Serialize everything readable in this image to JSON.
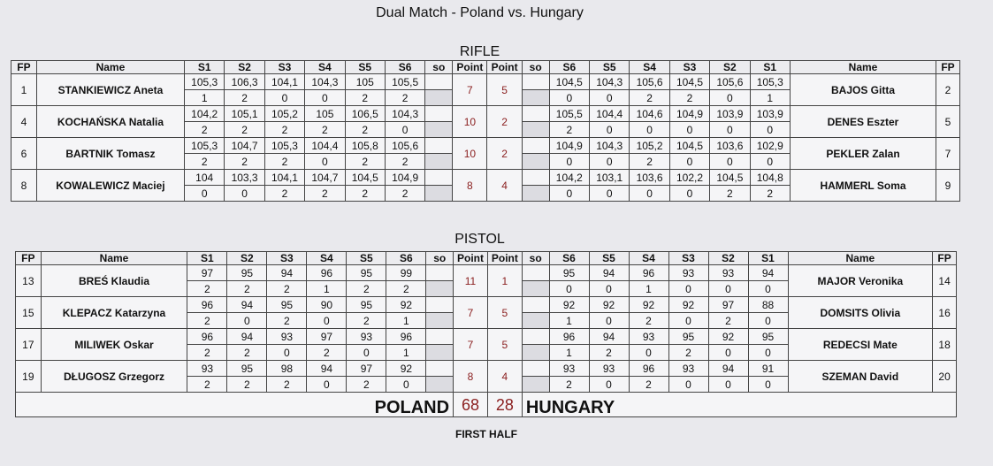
{
  "title": "Dual Match - Poland vs. Hungary",
  "headers": {
    "fp": "FP",
    "name": "Name",
    "s1": "S1",
    "s2": "S2",
    "s3": "S3",
    "s4": "S4",
    "s5": "S5",
    "s6": "S6",
    "so": "so",
    "point": "Point"
  },
  "rifle": {
    "title": "RIFLE",
    "rows": [
      {
        "left_fp": "1",
        "left_name": "STANKIEWICZ Aneta",
        "left_scores": [
          "105,3",
          "106,3",
          "104,1",
          "104,3",
          "105",
          "105,5"
        ],
        "left_pts": [
          "1",
          "2",
          "0",
          "0",
          "2",
          "2"
        ],
        "left_point": "7",
        "right_point": "5",
        "right_scores": [
          "104,5",
          "104,3",
          "105,6",
          "104,5",
          "105,6",
          "105,3"
        ],
        "right_pts": [
          "0",
          "0",
          "2",
          "2",
          "0",
          "1"
        ],
        "right_name": "BAJOS Gitta",
        "right_fp": "2"
      },
      {
        "left_fp": "4",
        "left_name": "KOCHAŃSKA Natalia",
        "left_scores": [
          "104,2",
          "105,1",
          "105,2",
          "105",
          "106,5",
          "104,3"
        ],
        "left_pts": [
          "2",
          "2",
          "2",
          "2",
          "2",
          "0"
        ],
        "left_point": "10",
        "right_point": "2",
        "right_scores": [
          "105,5",
          "104,4",
          "104,6",
          "104,9",
          "103,9",
          "103,9"
        ],
        "right_pts": [
          "2",
          "0",
          "0",
          "0",
          "0",
          "0"
        ],
        "right_name": "DENES Eszter",
        "right_fp": "5"
      },
      {
        "left_fp": "6",
        "left_name": "BARTNIK Tomasz",
        "left_scores": [
          "105,3",
          "104,7",
          "105,3",
          "104,4",
          "105,8",
          "105,6"
        ],
        "left_pts": [
          "2",
          "2",
          "2",
          "0",
          "2",
          "2"
        ],
        "left_point": "10",
        "right_point": "2",
        "right_scores": [
          "104,9",
          "104,3",
          "105,2",
          "104,5",
          "103,6",
          "102,9"
        ],
        "right_pts": [
          "0",
          "0",
          "2",
          "0",
          "0",
          "0"
        ],
        "right_name": "PEKLER Zalan",
        "right_fp": "7"
      },
      {
        "left_fp": "8",
        "left_name": "KOWALEWICZ Maciej",
        "left_scores": [
          "104",
          "103,3",
          "104,1",
          "104,7",
          "104,5",
          "104,9"
        ],
        "left_pts": [
          "0",
          "0",
          "2",
          "2",
          "2",
          "2"
        ],
        "left_point": "8",
        "right_point": "4",
        "right_scores": [
          "104,2",
          "103,1",
          "103,6",
          "102,2",
          "104,5",
          "104,8"
        ],
        "right_pts": [
          "0",
          "0",
          "0",
          "0",
          "2",
          "2"
        ],
        "right_name": "HAMMERL Soma",
        "right_fp": "9"
      }
    ]
  },
  "pistol": {
    "title": "PISTOL",
    "rows": [
      {
        "left_fp": "13",
        "left_name": "BREŚ Klaudia",
        "left_scores": [
          "97",
          "95",
          "94",
          "96",
          "95",
          "99"
        ],
        "left_pts": [
          "2",
          "2",
          "2",
          "1",
          "2",
          "2"
        ],
        "left_point": "11",
        "right_point": "1",
        "right_scores": [
          "95",
          "94",
          "96",
          "93",
          "93",
          "94"
        ],
        "right_pts": [
          "0",
          "0",
          "1",
          "0",
          "0",
          "0"
        ],
        "right_name": "MAJOR Veronika",
        "right_fp": "14"
      },
      {
        "left_fp": "15",
        "left_name": "KLEPACZ Katarzyna",
        "left_scores": [
          "96",
          "94",
          "95",
          "90",
          "95",
          "92"
        ],
        "left_pts": [
          "2",
          "0",
          "2",
          "0",
          "2",
          "1"
        ],
        "left_point": "7",
        "right_point": "5",
        "right_scores": [
          "92",
          "92",
          "92",
          "92",
          "97",
          "88"
        ],
        "right_pts": [
          "1",
          "0",
          "2",
          "0",
          "2",
          "0"
        ],
        "right_name": "DOMSITS Olivia",
        "right_fp": "16"
      },
      {
        "left_fp": "17",
        "left_name": "MILIWEK Oskar",
        "left_scores": [
          "96",
          "94",
          "93",
          "97",
          "93",
          "96"
        ],
        "left_pts": [
          "2",
          "2",
          "0",
          "2",
          "0",
          "1"
        ],
        "left_point": "7",
        "right_point": "5",
        "right_scores": [
          "96",
          "94",
          "93",
          "95",
          "92",
          "95"
        ],
        "right_pts": [
          "1",
          "2",
          "0",
          "2",
          "0",
          "0"
        ],
        "right_name": "REDECSI Mate",
        "right_fp": "18"
      },
      {
        "left_fp": "19",
        "left_name": "DŁUGOSZ Grzegorz",
        "left_scores": [
          "93",
          "95",
          "98",
          "94",
          "97",
          "92"
        ],
        "left_pts": [
          "2",
          "2",
          "2",
          "0",
          "2",
          "0"
        ],
        "left_point": "8",
        "right_point": "4",
        "right_scores": [
          "93",
          "93",
          "96",
          "93",
          "94",
          "91"
        ],
        "right_pts": [
          "2",
          "0",
          "2",
          "0",
          "0",
          "0"
        ],
        "right_name": "SZEMAN David",
        "right_fp": "20"
      }
    ]
  },
  "totals": {
    "left_team": "POLAND",
    "left_total": "68",
    "right_total": "28",
    "right_team": "HUNGARY"
  },
  "footer": "FIRST HALF"
}
